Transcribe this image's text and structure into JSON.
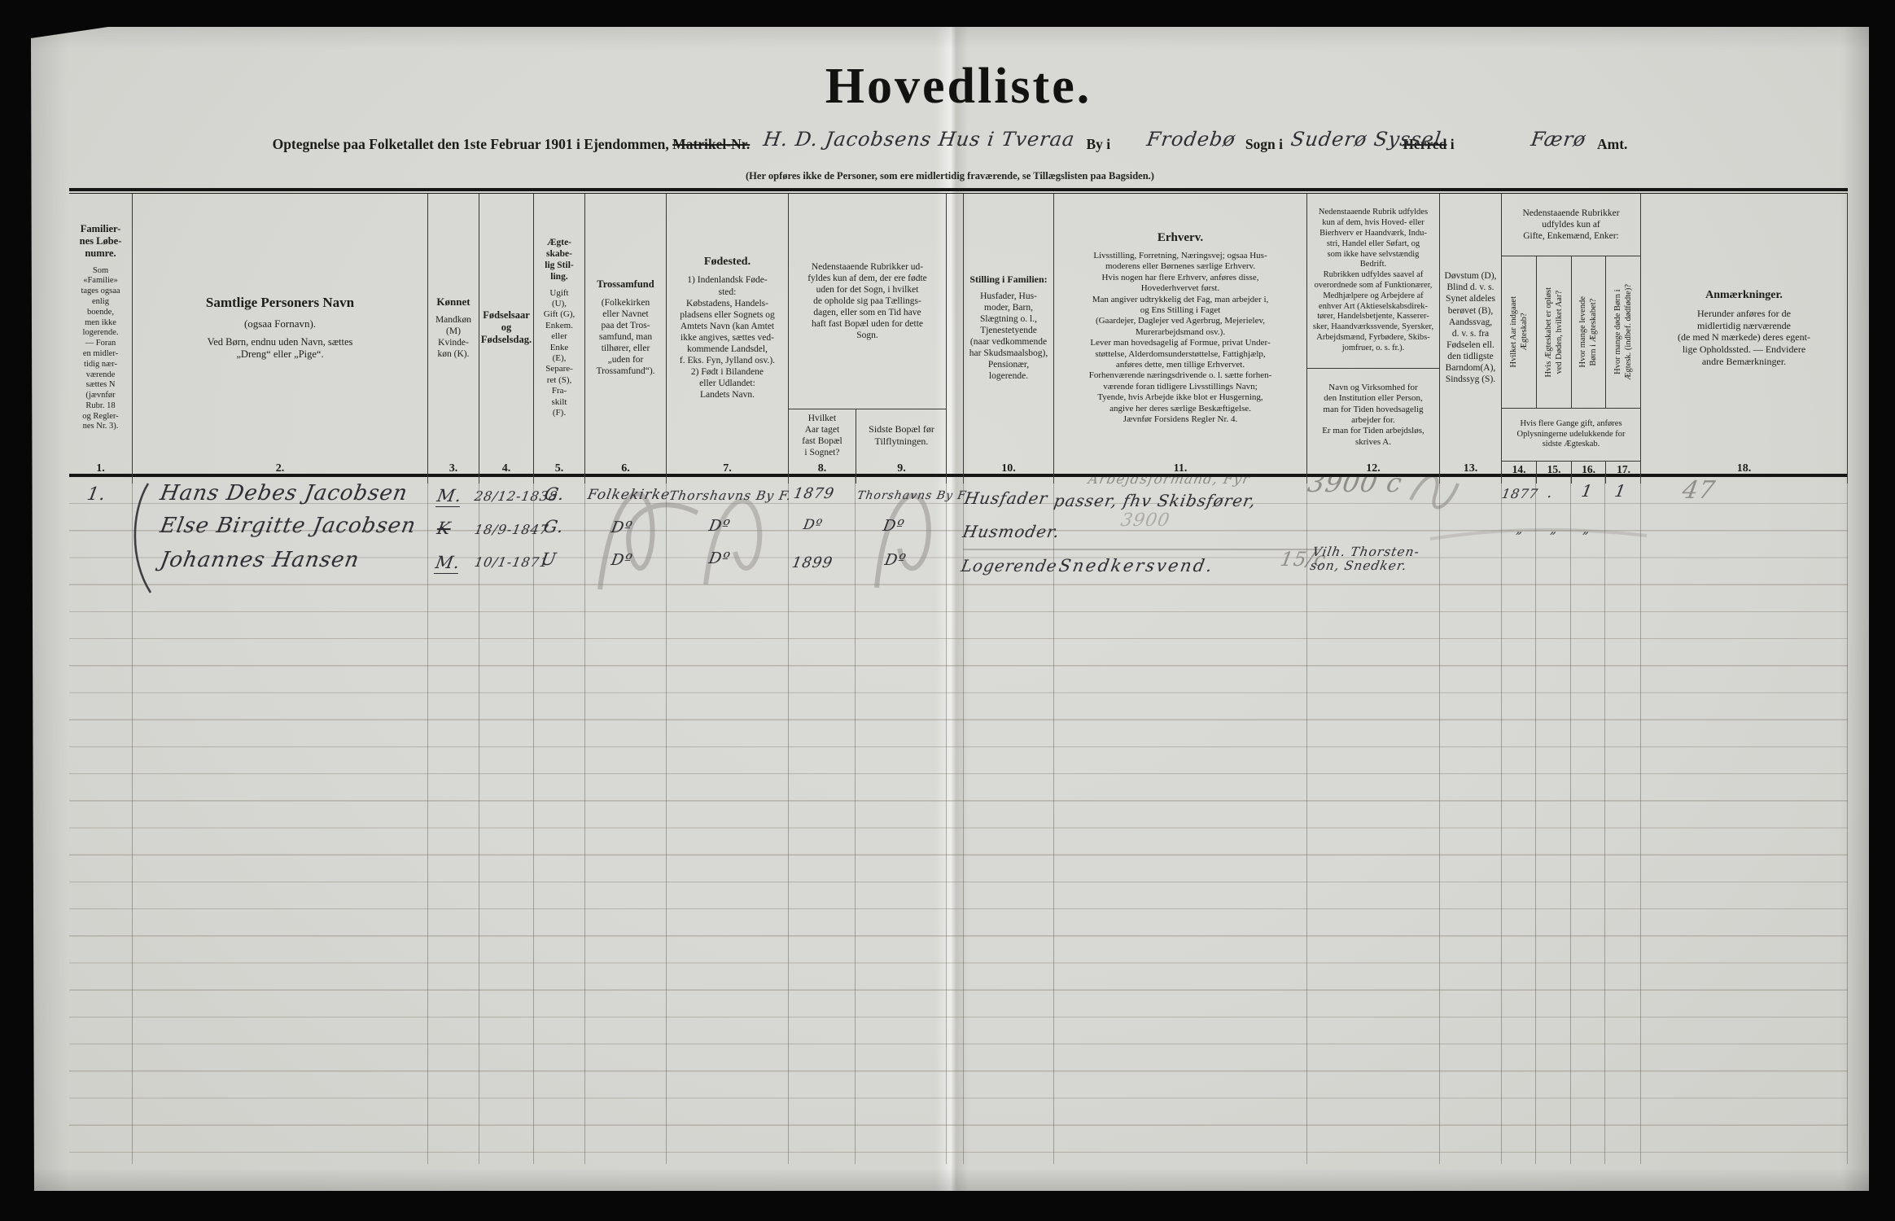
{
  "colors": {
    "paper": "#d8d8d4",
    "ink": "#2e2d33",
    "pencil": "#8f8e8a",
    "rule_black": "#161615"
  },
  "document": {
    "title": "Hovedliste.",
    "subtitle": {
      "pre": "Optegnelse paa Folketallet den 1ste Februar 1901 i Ejendommen,",
      "struck_label": "Matrikel-Nr.",
      "hw_property": "H. D. Jacobsens Hus i Tveraa",
      "label_by": "By i",
      "hw_parish": "Frodebø",
      "label_sogn": "Sogn i",
      "hw_district": "Suderø Syssel",
      "struck_herred": "Herred",
      "label_i": "i",
      "hw_amt": "Færø",
      "label_amt": "Amt."
    },
    "note": "(Her opføres ikke de Personer, som ere midlertidig fraværende, se Tillægslisten paa Bagsiden.)"
  },
  "header": {
    "c1": {
      "title": "Familier-\nnes Løbe-\nnumre.",
      "body": "Som\n«Familie»\ntages ogsaa\nenlig\nboende,\nmen ikke\nlogerende.\n— Foran\nen midler-\ntidig nær-\nværende\nsættes N\n(jævnfør\nRubr. 18\nog Regler-\nnes Nr. 3).",
      "num": "1."
    },
    "c2": {
      "title": "Samtlige Personers Navn",
      "sub": "(ogsaa Fornavn).",
      "body": "Ved Børn, endnu uden Navn, sættes\n„Dreng“ eller „Pige“.",
      "num": "2."
    },
    "c3": {
      "title": "Kønnet",
      "body": "Mandkøn\n(M)\nKvinde-\nkøn (K).",
      "num": "3."
    },
    "c4": {
      "title": "Fødselsaar\nog\nFødselsdag.",
      "num": "4."
    },
    "c5": {
      "title": "Ægte-\nskabe-\nlig Stil-\nling.",
      "body": "Ugift\n(U),\nGift (G),\nEnkem.\neller\nEnke\n(E),\nSepare-\nret (S),\nFra-\nskilt\n(F).",
      "num": "5."
    },
    "c6": {
      "title": "Trossamfund",
      "body": "(Folkekirken\neller Navnet\npaa det Tros-\nsamfund, man\ntilhører, eller\n„uden for\nTrossamfund“).",
      "num": "6."
    },
    "c7": {
      "title": "Fødested.",
      "body": "1) Indenlandsk Føde-\nsted:\nKøbstadens, Handels-\npladsens eller Sognets og\nAmtets Navn (kan Amtet\nikke angives, sættes ved-\nkommende Landsdel,\nf. Eks. Fyn, Jylland osv.).\n2) Født i Bilandene\neller Udlandet:\nLandets Navn.",
      "num": "7."
    },
    "c8_9_note": "Nedenstaaende Rubrikker ud-\nfyldes kun af dem, der ere fødte\nuden for det Sogn, i hvilket\nde opholde sig paa Tællings-\ndagen, eller som en Tid have\nhaft fast Bopæl uden for dette\nSogn.",
    "c8": {
      "title": "Hvilket\nAar taget\nfast Bopæl\ni Sognet?",
      "num": "8."
    },
    "c9": {
      "title": "Sidste Bopæl før\nTilflytningen.",
      "num": "9."
    },
    "c10": {
      "title": "Stilling i Familien:",
      "body": "Husfader, Hus-\nmoder, Barn,\nSlægtning o. l.,\nTjenestetyende\n(naar vedkommende\nhar Skudsmaalsbog),\nPensionær,\nlogerende.",
      "num": "10."
    },
    "c11": {
      "title": "Erhverv.",
      "body": "Livsstilling, Forretning, Næringsvej; ogsaa Hus-\nmoderens eller Børnenes særlige Erhverv.\nHvis nogen har flere Erhverv, anføres disse,\nHovederhvervet først.\nMan angiver udtrykkelig det Fag, man arbejder i,\nog Ens Stilling i Faget\n(Gaardejer, Daglejer ved Agerbrug, Mejerielev,\nMurerarbejdsmand osv.).\nLever man hovedsagelig af Formue, privat Under-\nstøttelse, Alderdomsunderstøttelse, Fattighjælp,\nanføres dette, men tillige Erhvervet.\nForhenværende næringsdrivende o. l. sætte forhen-\nværende foran tidligere Livsstillings Navn;\nTyende, hvis Arbejde ikke blot er Husgerning,\nangive her deres særlige Beskæftigelse.\nJævnfør Forsidens Regler Nr. 4.",
      "num": "11."
    },
    "c12": {
      "top": "Nedenstaaende Rubrik udfyldes\nkun af dem, hvis Hoved- eller\nBierhverv er Haandværk, Indu-\nstri, Handel eller Søfart, og\nsom ikke have selvstændig\nBedrift.\nRubrikken udfyldes saavel af\noverordnede som af Funktionærer,\nMedhjælpere og Arbejdere af\nenhver Art (Aktieselskabsdirek-\ntører, Handelsbetjente, Kasserer-\nsker, Haandværkssvende, Syersker,\nArbejdsmænd, Fyrbødere, Skibs-\njomfruer, o. s. fr.).",
      "bottom": "Navn og Virksomhed for\nden Institution eller Person,\nman for Tiden hovedsagelig\narbejder for.\nEr man for Tiden arbejdsløs,\nskrives A.",
      "num": "12."
    },
    "c13": {
      "title": "Døvstum (D),\nBlind d. v. s.\nSynet aldeles\nberøvet (B),\nAandssvag,\nd. v. s. fra\nFødselen ell.\nden tidligste\nBarndom(A),\nSindssyg (S).",
      "num": "13."
    },
    "c14_17_note_top": "Nedenstaaende Rubrikker\nudfyldes kun af\nGifte, Enkemænd, Enker:",
    "c14": {
      "title": "Hvilket Aar indgaaet\nÆgteskab?",
      "num": "14."
    },
    "c15": {
      "title": "Hvis Ægteskabet er opløst\nved Døden, hvilket Aar?",
      "num": "15."
    },
    "c16": {
      "title": "Hvor mange levende\nBørn i Ægteskabet?",
      "num": "16."
    },
    "c17": {
      "title": "Hvor mange døde Børn i\nÆgtesk. (indbef. dødfødte)?",
      "num": "17."
    },
    "c14_17_note_bottom": "Hvis flere Gange gift, anføres\nOplysningerne udelukkende for\nsidste Ægteskab.",
    "c18": {
      "title": "Anmærkninger.",
      "body": "Herunder anføres for de\nmidlertidig nærværende\n(de med N mærkede) deres egent-\nlige Opholdssted. — Endvidere\nandre Bemærkninger.",
      "num": "18."
    }
  },
  "rows": [
    {
      "no": "1.",
      "name": "Hans Debes Jacobsen",
      "sex": "M.",
      "birthdate": "28/12-1838",
      "marital": "G.",
      "religion": "Folkekirke",
      "birthplace": "Thorshavns By F.",
      "year_settled": "1879",
      "last_residence": "Thorshavns By F",
      "family_position": "Husfader",
      "occupation_ink": "passer, fhv Skibsfører,",
      "occupation_pencil": "Arbejdsformand, Fyr",
      "workplace_pencil": "3900 c",
      "marriage_year": "1877",
      "marriage_dissolved": ".",
      "children_living": "1",
      "children_dead": "1",
      "remark_pencil": "47"
    },
    {
      "name": "Else Birgitte Jacobsen",
      "sex": "K",
      "birthdate": "18/9-1847",
      "marital": "G.",
      "religion": "Dº",
      "birthplace": "Dº",
      "year_settled": "Dº",
      "last_residence": "Dº",
      "family_position": "Husmoder.",
      "occupation_pencil": "3900",
      "ditto_14": "„",
      "ditto_15": "„",
      "ditto_16": "„"
    },
    {
      "name": "Johannes Hansen",
      "sex": "M.",
      "birthdate": "10/1-1871",
      "marital": "U",
      "religion": "Dº",
      "birthplace": "Dº",
      "year_settled": "1899",
      "last_residence": "Dº",
      "family_position": "Logerende",
      "occupation_ink": "Snedkersvend.",
      "occupation_pencil": "15/c",
      "workplace_ink": "Vilh. Thorsten-\nson, Snedker."
    }
  ]
}
